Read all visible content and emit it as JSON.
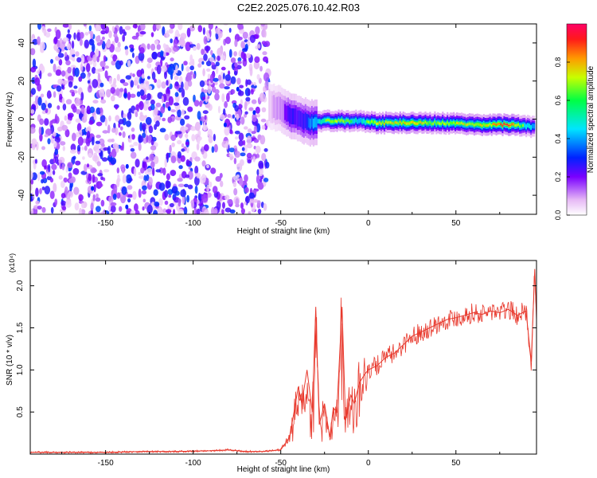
{
  "title": "C2E2.2025.076.10.42.R03",
  "chart_data": [
    {
      "type": "heatmap",
      "xlabel": "Height of straight line (km)",
      "ylabel": "Frequency (Hz)",
      "xlim": [
        -193,
        96
      ],
      "ylim": [
        -50,
        50
      ],
      "x_ticks": [
        -150,
        -100,
        -50,
        0,
        50
      ],
      "y_ticks": [
        -40,
        -20,
        0,
        20,
        40
      ],
      "colorbar": {
        "label": "Normalized spectral amplitude",
        "range": [
          0,
          1
        ],
        "ticks": [
          0.0,
          0.2,
          0.4,
          0.6,
          0.8
        ]
      },
      "noise_region": {
        "x": [
          -193,
          -57
        ],
        "typical_amplitude": 0.2
      },
      "ridge": [
        {
          "x": -57,
          "freq": 7,
          "amplitude": 0.25
        },
        {
          "x": -50,
          "freq": 5,
          "amplitude": 0.35
        },
        {
          "x": -45,
          "freq": 2,
          "amplitude": 0.55
        },
        {
          "x": -40,
          "freq": 0,
          "amplitude": 0.5
        },
        {
          "x": -33,
          "freq": -2,
          "amplitude": 0.6
        },
        {
          "x": -25,
          "freq": -1,
          "amplitude": 0.75
        },
        {
          "x": -15,
          "freq": -1,
          "amplitude": 0.8
        },
        {
          "x": -5,
          "freq": -1,
          "amplitude": 0.7
        },
        {
          "x": 5,
          "freq": -2,
          "amplitude": 0.85
        },
        {
          "x": 20,
          "freq": -2,
          "amplitude": 0.9
        },
        {
          "x": 40,
          "freq": -2,
          "amplitude": 0.8
        },
        {
          "x": 60,
          "freq": -3,
          "amplitude": 0.85
        },
        {
          "x": 80,
          "freq": -3,
          "amplitude": 0.95
        },
        {
          "x": 95,
          "freq": -4,
          "amplitude": 0.6
        }
      ]
    },
    {
      "type": "line",
      "xlabel": "Height of straight line (km)",
      "ylabel": "SNR (10 * v/v)",
      "y_multiplier": "(x10⁴)",
      "xlim": [
        -193,
        96
      ],
      "ylim": [
        0,
        2.3
      ],
      "x_ticks": [
        -150,
        -100,
        -50,
        0,
        50
      ],
      "y_ticks": [
        0.5,
        1.0,
        1.5,
        2.0
      ],
      "y_tick_labels": [
        "0.5",
        "1.0",
        "1.5",
        "2.0"
      ],
      "series_color": "#e8392d",
      "x": [
        -193,
        -170,
        -150,
        -130,
        -110,
        -90,
        -80,
        -70,
        -60,
        -55,
        -50,
        -45,
        -42,
        -40,
        -38,
        -35,
        -32,
        -30,
        -28,
        -25,
        -22,
        -20,
        -18,
        -15,
        -13,
        -10,
        -8,
        -5,
        -2,
        0,
        5,
        10,
        15,
        20,
        25,
        30,
        35,
        40,
        45,
        50,
        55,
        60,
        65,
        70,
        75,
        80,
        85,
        90,
        93,
        95,
        96
      ],
      "values": [
        0.02,
        0.02,
        0.02,
        0.03,
        0.03,
        0.04,
        0.05,
        0.03,
        0.03,
        0.04,
        0.05,
        0.2,
        0.55,
        0.8,
        0.6,
        1.0,
        0.5,
        1.75,
        0.35,
        0.6,
        0.2,
        0.55,
        0.5,
        1.75,
        0.4,
        0.7,
        0.6,
        0.85,
        0.95,
        1.0,
        1.05,
        1.15,
        1.2,
        1.3,
        1.4,
        1.45,
        1.5,
        1.55,
        1.6,
        1.62,
        1.65,
        1.68,
        1.66,
        1.7,
        1.68,
        1.72,
        1.65,
        1.7,
        1.1,
        2.2,
        1.6
      ]
    }
  ]
}
